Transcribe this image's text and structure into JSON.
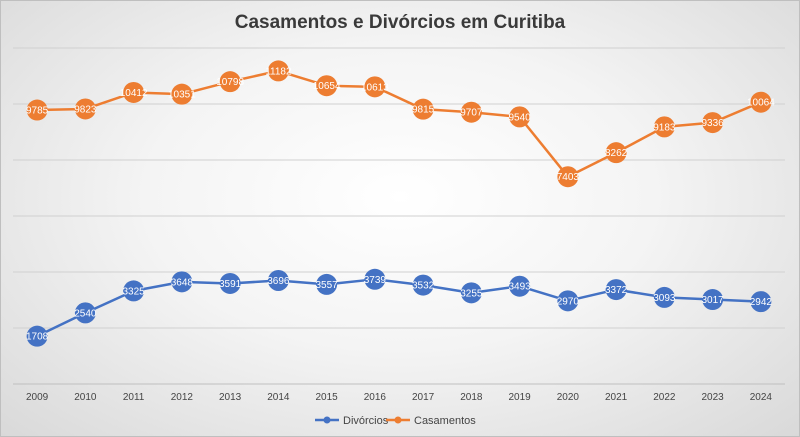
{
  "chart_data": {
    "type": "line",
    "title": "Casamentos e Divórcios em Curitiba",
    "xlabel": "",
    "ylabel": "",
    "ylim": [
      0,
      12000
    ],
    "categories": [
      "2009",
      "2010",
      "2011",
      "2012",
      "2013",
      "2014",
      "2015",
      "2016",
      "2017",
      "2018",
      "2019",
      "2020",
      "2021",
      "2022",
      "2023",
      "2024"
    ],
    "series": [
      {
        "name": "Divórcios",
        "color": "#4472C4",
        "values": [
          1708,
          2540,
          3325,
          3648,
          3591,
          3696,
          3557,
          3739,
          3532,
          3255,
          3493,
          2970,
          3372,
          3093,
          3017,
          2942
        ],
        "labels": [
          "1708",
          "2540",
          "3325",
          "3648",
          "3591",
          "3696",
          "3557",
          "3739",
          "3532",
          "3255",
          "3493",
          "2970",
          "3372",
          "3093",
          "3017",
          "2942"
        ]
      },
      {
        "name": "Casamentos",
        "color": "#ED7D31",
        "values": [
          9785,
          9823,
          10412,
          10351,
          10798,
          11182,
          10654,
          10613,
          9815,
          9707,
          9540,
          7403,
          8262,
          9183,
          9336,
          10064
        ],
        "labels": [
          "9785",
          "9823",
          "10412",
          "10351",
          "10798",
          "11182",
          "10654",
          "10613",
          "9815",
          "9707",
          "9540",
          "7403",
          "8262",
          "9183",
          "9336",
          "10064"
        ]
      }
    ],
    "legend": [
      "Divórcios",
      "Casamentos"
    ],
    "legend_position": "bottom"
  }
}
